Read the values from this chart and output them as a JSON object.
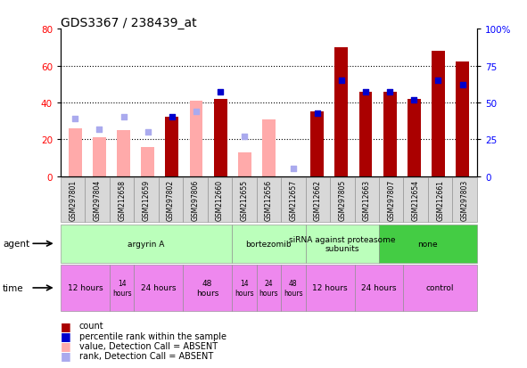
{
  "title": "GDS3367 / 238439_at",
  "samples": [
    "GSM297801",
    "GSM297804",
    "GSM212658",
    "GSM212659",
    "GSM297802",
    "GSM297806",
    "GSM212660",
    "GSM212655",
    "GSM212656",
    "GSM212657",
    "GSM212662",
    "GSM297805",
    "GSM212663",
    "GSM297807",
    "GSM212654",
    "GSM212661",
    "GSM297803"
  ],
  "count": [
    null,
    null,
    null,
    null,
    32,
    null,
    42,
    null,
    null,
    null,
    35,
    70,
    46,
    46,
    42,
    68,
    62
  ],
  "count_absent": [
    26,
    21,
    25,
    16,
    null,
    41,
    null,
    13,
    31,
    null,
    null,
    null,
    null,
    null,
    null,
    null,
    null
  ],
  "rank": [
    null,
    null,
    null,
    null,
    40,
    null,
    57,
    null,
    null,
    null,
    43,
    65,
    57,
    57,
    52,
    65,
    62
  ],
  "rank_absent": [
    39,
    32,
    40,
    30,
    null,
    44,
    null,
    27,
    null,
    5,
    null,
    null,
    null,
    null,
    null,
    null,
    null
  ],
  "agent_groups": [
    {
      "label": "argyrin A",
      "start": 0,
      "end": 7,
      "color": "#bbffbb"
    },
    {
      "label": "bortezomib",
      "start": 7,
      "end": 10,
      "color": "#bbffbb"
    },
    {
      "label": "siRNA against proteasome\nsubunits",
      "start": 10,
      "end": 13,
      "color": "#bbffbb"
    },
    {
      "label": "none",
      "start": 13,
      "end": 17,
      "color": "#44cc44"
    }
  ],
  "time_groups": [
    {
      "label": "12 hours",
      "start": 0,
      "end": 2
    },
    {
      "label": "14\nhours",
      "start": 2,
      "end": 3
    },
    {
      "label": "24 hours",
      "start": 3,
      "end": 5
    },
    {
      "label": "48\nhours",
      "start": 5,
      "end": 7
    },
    {
      "label": "14\nhours",
      "start": 7,
      "end": 8
    },
    {
      "label": "24\nhours",
      "start": 8,
      "end": 9
    },
    {
      "label": "48\nhours",
      "start": 9,
      "end": 10
    },
    {
      "label": "12 hours",
      "start": 10,
      "end": 12
    },
    {
      "label": "24 hours",
      "start": 12,
      "end": 14
    },
    {
      "label": "control",
      "start": 14,
      "end": 17
    }
  ],
  "ylim_left": [
    0,
    80
  ],
  "ylim_right": [
    0,
    100
  ],
  "yticks_left": [
    0,
    20,
    40,
    60,
    80
  ],
  "yticks_right": [
    0,
    25,
    50,
    75,
    100
  ],
  "bar_color_present": "#aa0000",
  "bar_color_absent": "#ffaaaa",
  "rank_color_present": "#0000cc",
  "rank_color_absent": "#aaaaee",
  "background_color": "#ffffff"
}
